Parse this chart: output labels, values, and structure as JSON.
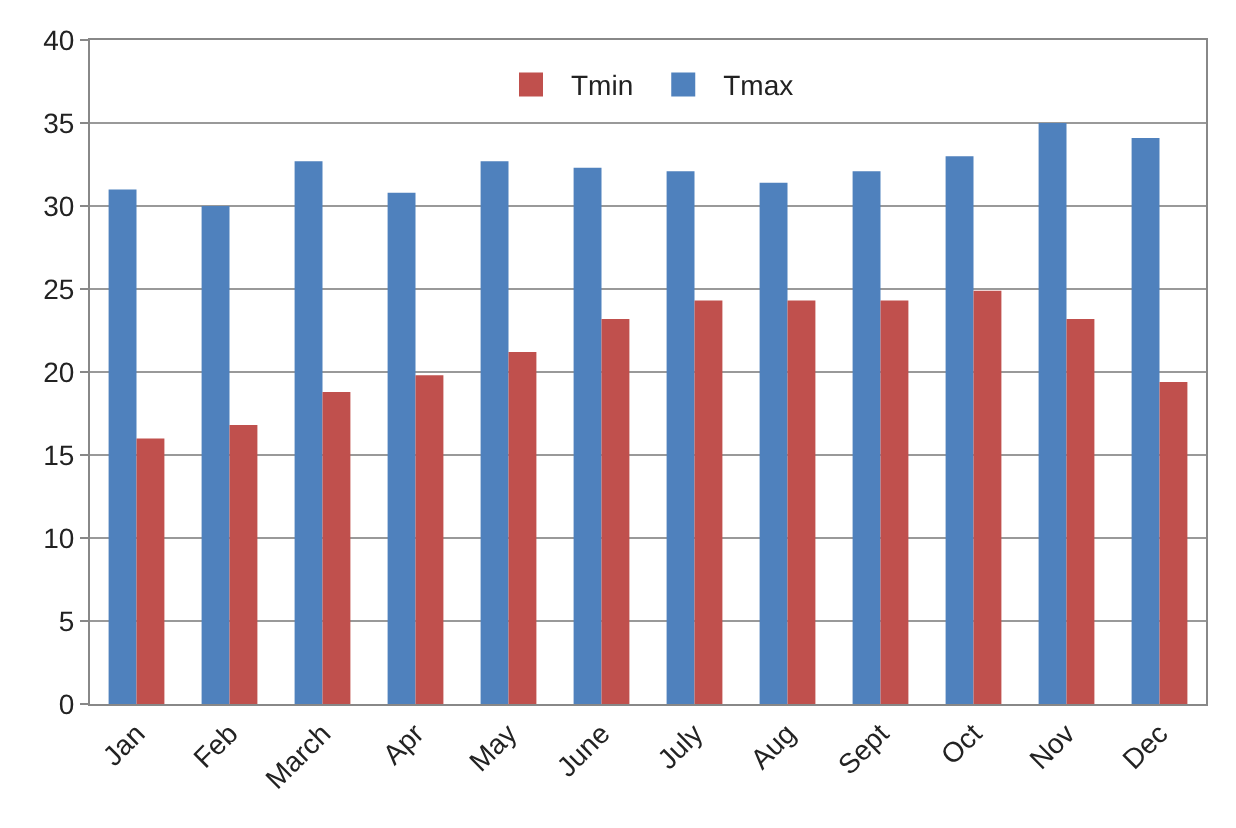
{
  "chart_data": {
    "type": "bar",
    "categories": [
      "Jan",
      "Feb",
      "March",
      "Apr",
      "May",
      "June",
      "July",
      "Aug",
      "Sept",
      "Oct",
      "Nov",
      "Dec"
    ],
    "series": [
      {
        "name": "Tmax",
        "color": "#4f81bd",
        "values": [
          31,
          30,
          32.7,
          30.8,
          32.7,
          32.3,
          32.1,
          31.4,
          32.1,
          33,
          35,
          34.1
        ]
      },
      {
        "name": "Tmin",
        "color": "#c0504d",
        "values": [
          16,
          16.8,
          18.8,
          19.8,
          21.2,
          23.2,
          24.3,
          24.3,
          24.3,
          24.9,
          23.2,
          19.4
        ]
      }
    ],
    "ylim": [
      0,
      40
    ],
    "yticks": [
      0,
      5,
      10,
      15,
      20,
      25,
      30,
      35,
      40
    ],
    "grid": "y",
    "legend": "top"
  }
}
